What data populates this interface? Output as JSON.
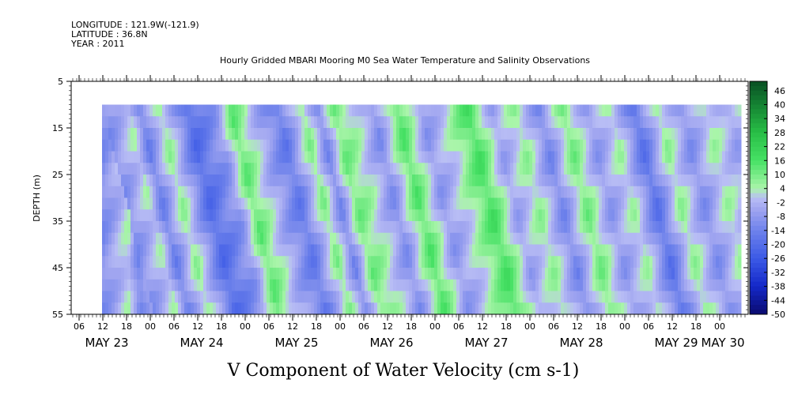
{
  "header": {
    "longitude": "LONGITUDE : 121.9W(-121.9)",
    "latitude": "LATITUDE : 36.8N",
    "year": "YEAR : 2011"
  },
  "chart_data": {
    "type": "heatmap",
    "title": "Hourly Gridded MBARI Mooring M0 Sea Water Temperature and Salinity Observations",
    "xlabel": "V Component of Water Velocity (cm s-1)",
    "ylabel": "DEPTH (m)",
    "ylim": [
      55,
      5
    ],
    "yticks": [
      5,
      15,
      25,
      35,
      45,
      55
    ],
    "data_depth_range": [
      10,
      55
    ],
    "hour_ticks": [
      "06",
      "12",
      "18",
      "00",
      "06",
      "12",
      "18",
      "00",
      "06",
      "12",
      "18",
      "00",
      "06",
      "12",
      "18",
      "00",
      "06",
      "12",
      "18",
      "00",
      "06",
      "12",
      "18",
      "00",
      "06",
      "12",
      "18",
      "00"
    ],
    "dates": [
      "MAY 23",
      "MAY 24",
      "MAY 25",
      "MAY 26",
      "MAY 27",
      "MAY 28",
      "MAY 29",
      "MAY 30"
    ],
    "colorbar": {
      "min": -50,
      "max": 50,
      "step": 6,
      "labels": [
        "46",
        "40",
        "34",
        "28",
        "22",
        "16",
        "10",
        "4",
        "-2",
        "-8",
        "-14",
        "-20",
        "-26",
        "-32",
        "-38",
        "-44",
        "-50"
      ]
    },
    "field_summary": {
      "columns_hours": [
        {
          "hour": 12,
          "v": -10
        },
        {
          "hour": 18,
          "v": 2
        },
        {
          "hour": 21,
          "v": -14
        },
        {
          "hour": 26,
          "v": 6
        },
        {
          "hour": 33,
          "v": -20
        },
        {
          "hour": 40,
          "v": -8
        },
        {
          "hour": 44,
          "v": 12
        },
        {
          "hour": 50,
          "v": -4
        },
        {
          "hour": 56,
          "v": -16
        },
        {
          "hour": 62,
          "v": 8
        },
        {
          "hour": 66,
          "v": -12
        },
        {
          "hour": 70,
          "v": 10
        },
        {
          "hour": 74,
          "v": 4
        },
        {
          "hour": 80,
          "v": -10
        },
        {
          "hour": 86,
          "v": 14
        },
        {
          "hour": 92,
          "v": -8
        },
        {
          "hour": 98,
          "v": 2
        },
        {
          "hour": 104,
          "v": 16
        },
        {
          "hour": 110,
          "v": -6
        },
        {
          "hour": 116,
          "v": 6
        },
        {
          "hour": 122,
          "v": -12
        },
        {
          "hour": 128,
          "v": 10
        },
        {
          "hour": 134,
          "v": -8
        },
        {
          "hour": 140,
          "v": 4
        },
        {
          "hour": 146,
          "v": -18
        },
        {
          "hour": 152,
          "v": 6
        },
        {
          "hour": 158,
          "v": -10
        },
        {
          "hour": 164,
          "v": 4
        },
        {
          "hour": 170,
          "v": -6
        },
        {
          "hour": 174,
          "v": 2
        }
      ]
    }
  }
}
